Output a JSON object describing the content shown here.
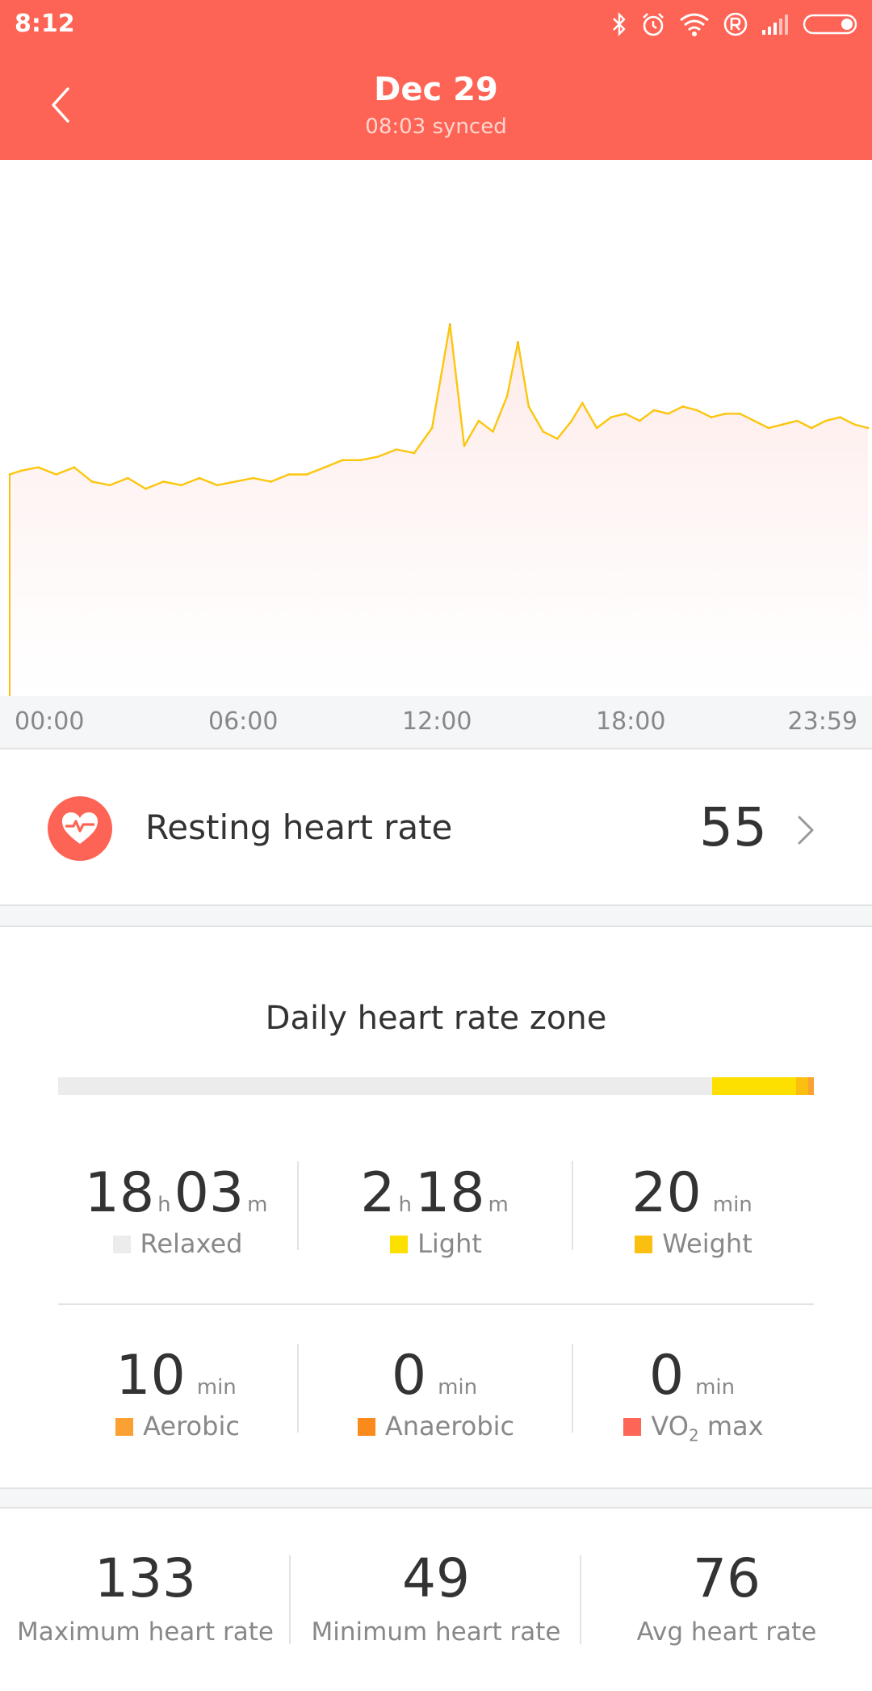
{
  "status_bar": {
    "time": "8:12",
    "icons": [
      "bluetooth-icon",
      "alarm-icon",
      "wifi-icon",
      "registered-icon",
      "signal-icon",
      "battery-icon"
    ]
  },
  "header": {
    "title": "Dec 29",
    "subtitle": "08:03 synced"
  },
  "chart_data": {
    "type": "line",
    "x_ticks": [
      "00:00",
      "06:00",
      "12:00",
      "18:00",
      "23:59"
    ],
    "y_unit": "bpm",
    "ylim": [
      0,
      150
    ],
    "series": [
      {
        "x_hours": [
          0,
          0.3,
          0.8,
          1.3,
          1.8,
          2.3,
          2.8,
          3.3,
          3.8,
          4.3,
          4.8,
          5.3,
          5.8,
          6.3,
          6.8,
          7.3,
          7.8,
          8.3,
          8.8,
          9.3,
          9.8,
          10.3,
          10.8,
          11.3,
          11.8,
          12.3,
          12.7,
          13.1,
          13.5,
          13.9,
          14.2,
          14.5,
          14.9,
          15.3,
          15.7,
          16.0,
          16.4,
          16.8,
          17.2,
          17.6,
          18.0,
          18.4,
          18.8,
          19.2,
          19.6,
          20.0,
          20.4,
          20.8,
          21.2,
          21.6,
          22.0,
          22.4,
          22.8,
          23.2,
          23.6,
          23.98
        ],
        "values": [
          62,
          63,
          64,
          62,
          64,
          60,
          59,
          61,
          58,
          60,
          59,
          61,
          59,
          60,
          61,
          60,
          62,
          62,
          64,
          66,
          66,
          67,
          69,
          68,
          75,
          104,
          70,
          77,
          74,
          84,
          99,
          81,
          74,
          72,
          77,
          82,
          75,
          78,
          79,
          77,
          80,
          79,
          81,
          80,
          78,
          79,
          79,
          77,
          75,
          76,
          77,
          75,
          77,
          78,
          76,
          75
        ]
      }
    ]
  },
  "resting": {
    "label": "Resting heart rate",
    "value": "55"
  },
  "zones": {
    "title": "Daily heart rate zone",
    "colors": {
      "relaxed": "#ececed",
      "light": "#fde000",
      "weight": "#fbbf10",
      "aerobic": "#fba134",
      "anaerobic": "#fb8a1d",
      "vo2": "#fb6657"
    },
    "relaxed": {
      "h": "18",
      "h_unit": "h",
      "m": "03",
      "m_unit": "m",
      "label": "Relaxed",
      "minutes": 1083
    },
    "light": {
      "h": "2",
      "h_unit": "h",
      "m": "18",
      "m_unit": "m",
      "label": "Light",
      "minutes": 138
    },
    "weight": {
      "value": "20",
      "unit": "min",
      "label": "Weight",
      "minutes": 20
    },
    "aerobic": {
      "value": "10",
      "unit": "min",
      "label": "Aerobic",
      "minutes": 10
    },
    "anaerobic": {
      "value": "0",
      "unit": "min",
      "label": "Anaerobic",
      "minutes": 0
    },
    "vo2": {
      "value": "0",
      "unit": "min",
      "label_main": "VO",
      "label_sub": "2",
      "label_rest": " max",
      "minutes": 0
    }
  },
  "summary": {
    "max": {
      "value": "133",
      "label": "Maximum heart rate"
    },
    "min": {
      "value": "49",
      "label": "Minimum heart rate"
    },
    "avg": {
      "value": "76",
      "label": "Avg heart rate"
    }
  }
}
